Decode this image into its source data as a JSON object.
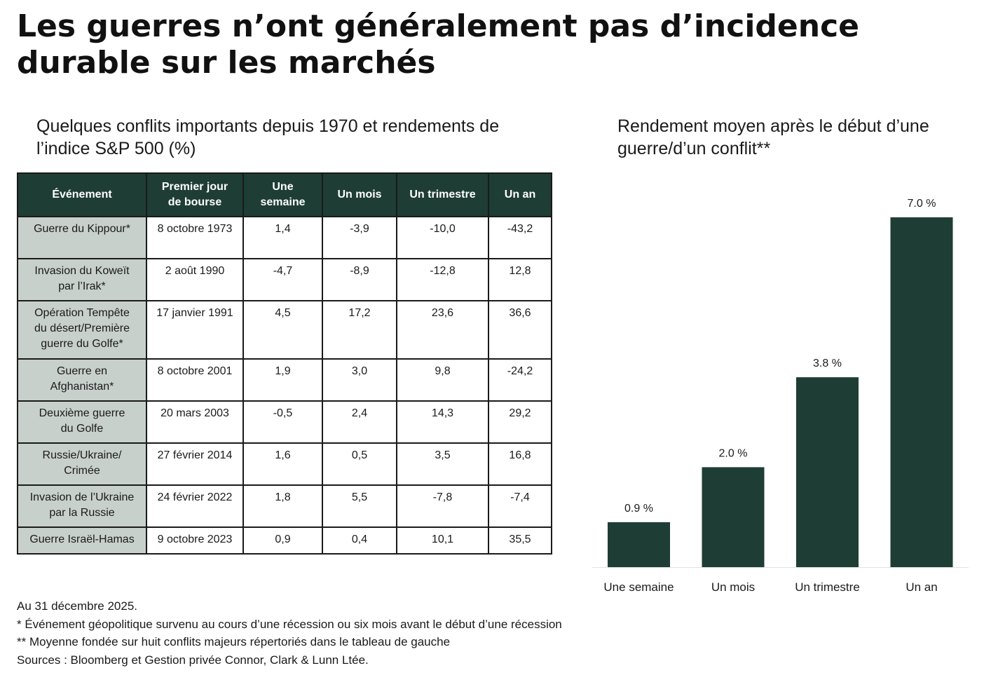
{
  "title_line1": "Les guerres n’ont généralement pas d’incidence",
  "title_line2": "durable sur les marchés",
  "table_title_line1": "Quelques conflits importants depuis 1970 et rendements de",
  "table_title_line2": "l’indice S&P 500 (%)",
  "chart_title_line1": "Rendement moyen après le début d’une",
  "chart_title_line2": "guerre/d’un conflit**",
  "table": {
    "headers": {
      "event": "Événement",
      "first_day_line1": "Premier jour",
      "first_day_line2": "de bourse",
      "week_line1": "Une",
      "week_line2": "semaine",
      "month": "Un mois",
      "quarter": "Un trimestre",
      "year": "Un an"
    },
    "rows": [
      {
        "event_line1": "Guerre du Kippour*",
        "event_line2": "",
        "event_line3": "",
        "date": "8 octobre 1973",
        "week": "1,4",
        "month": "-3,9",
        "quarter": "-10,0",
        "year": "-43,2"
      },
      {
        "event_line1": "Invasion du Koweït",
        "event_line2": "par l’Irak*",
        "event_line3": "",
        "date": "2 août 1990",
        "week": "-4,7",
        "month": "-8,9",
        "quarter": "-12,8",
        "year": "12,8"
      },
      {
        "event_line1": "Opération Tempête",
        "event_line2": "du désert/Première",
        "event_line3": "guerre du Golfe*",
        "date": "17 janvier 1991",
        "week": "4,5",
        "month": "17,2",
        "quarter": "23,6",
        "year": "36,6"
      },
      {
        "event_line1": "Guerre en",
        "event_line2": "Afghanistan*",
        "event_line3": "",
        "date": "8 octobre 2001",
        "week": "1,9",
        "month": "3,0",
        "quarter": "9,8",
        "year": "-24,2"
      },
      {
        "event_line1": "Deuxième guerre",
        "event_line2": "du Golfe",
        "event_line3": "",
        "date": "20 mars 2003",
        "week": "-0,5",
        "month": "2,4",
        "quarter": "14,3",
        "year": "29,2"
      },
      {
        "event_line1": "Russie/Ukraine/",
        "event_line2": "Crimée",
        "event_line3": "",
        "date": "27 février 2014",
        "week": "1,6",
        "month": "0,5",
        "quarter": "3,5",
        "year": "16,8"
      },
      {
        "event_line1": "Invasion de l’Ukraine",
        "event_line2": "par la Russie",
        "event_line3": "",
        "date": "24 février 2022",
        "week": "1,8",
        "month": "5,5",
        "quarter": "-7,8",
        "year": "-7,4"
      },
      {
        "event_line1": "Guerre Israël-Hamas",
        "event_line2": "",
        "event_line3": "",
        "date": "9 octobre 2023",
        "week": "0,9",
        "month": "0,4",
        "quarter": "10,1",
        "year": "35,5"
      }
    ]
  },
  "footnotes": {
    "asof": "Au 31 décembre 2025.",
    "note1": "* Événement géopolitique survenu au cours d’une récession ou six mois avant le début d’une récession",
    "note2": "** Moyenne fondée sur huit conflits majeurs répertoriés dans le tableau de gauche",
    "sources": "Sources : Bloomberg et Gestion privée Connor, Clark & Lunn Ltée."
  },
  "colors": {
    "dark_green": "#1e3d35",
    "event_cell_gray": "#c8d0cc"
  },
  "chart_data": {
    "type": "bar",
    "title": "Rendement moyen après le début d’une guerre/d’un conflit**",
    "categories": [
      "Une semaine",
      "Un mois",
      "Un trimestre",
      "Un an"
    ],
    "values": [
      0.9,
      2.0,
      3.8,
      7.0
    ],
    "value_labels": [
      "0.9 %",
      "2.0 %",
      "3.8 %",
      "7.0 %"
    ],
    "ylim": [
      0,
      7.0
    ],
    "grid": false,
    "bar_color": "#1e3d35"
  }
}
